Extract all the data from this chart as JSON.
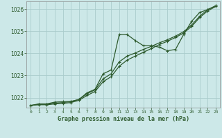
{
  "bg_color": "#cce8e8",
  "grid_color": "#aacccc",
  "line_color": "#2d5a2d",
  "xlabel": "Graphe pression niveau de la mer (hPa)",
  "xlim": [
    -0.5,
    23.5
  ],
  "ylim": [
    1021.55,
    1026.35
  ],
  "yticks": [
    1022,
    1023,
    1024,
    1025,
    1026
  ],
  "xticks": [
    0,
    1,
    2,
    3,
    4,
    5,
    6,
    7,
    8,
    9,
    10,
    11,
    12,
    13,
    14,
    15,
    16,
    17,
    18,
    19,
    20,
    21,
    22,
    23
  ],
  "series1_x": [
    0,
    1,
    2,
    3,
    4,
    5,
    6,
    7,
    8,
    9,
    10,
    11,
    12,
    13,
    14,
    15,
    16,
    17,
    18,
    19,
    20,
    21,
    22,
    23
  ],
  "series1_y": [
    1021.65,
    1021.72,
    1021.72,
    1021.8,
    1021.82,
    1021.83,
    1021.92,
    1022.22,
    1022.38,
    1023.08,
    1023.25,
    1024.85,
    1024.85,
    1024.58,
    1024.35,
    1024.35,
    1024.28,
    1024.12,
    1024.18,
    1024.85,
    1025.45,
    1025.85,
    1025.98,
    1026.15
  ],
  "series2_x": [
    0,
    1,
    2,
    3,
    4,
    5,
    6,
    7,
    8,
    9,
    10,
    11,
    12,
    13,
    14,
    15,
    16,
    17,
    18,
    19,
    20,
    21,
    22,
    23
  ],
  "series2_y": [
    1021.65,
    1021.7,
    1021.7,
    1021.75,
    1021.78,
    1021.82,
    1021.92,
    1022.18,
    1022.35,
    1022.85,
    1023.08,
    1023.62,
    1023.88,
    1024.02,
    1024.18,
    1024.32,
    1024.48,
    1024.62,
    1024.78,
    1024.98,
    1025.28,
    1025.68,
    1025.98,
    1026.15
  ],
  "series3_x": [
    0,
    1,
    2,
    3,
    4,
    5,
    6,
    7,
    8,
    9,
    10,
    11,
    12,
    13,
    14,
    15,
    16,
    17,
    18,
    19,
    20,
    21,
    22,
    23
  ],
  "series3_y": [
    1021.65,
    1021.68,
    1021.68,
    1021.72,
    1021.74,
    1021.78,
    1021.88,
    1022.1,
    1022.28,
    1022.72,
    1022.95,
    1023.42,
    1023.7,
    1023.88,
    1024.05,
    1024.22,
    1024.4,
    1024.55,
    1024.72,
    1024.92,
    1025.22,
    1025.62,
    1025.92,
    1026.12
  ]
}
